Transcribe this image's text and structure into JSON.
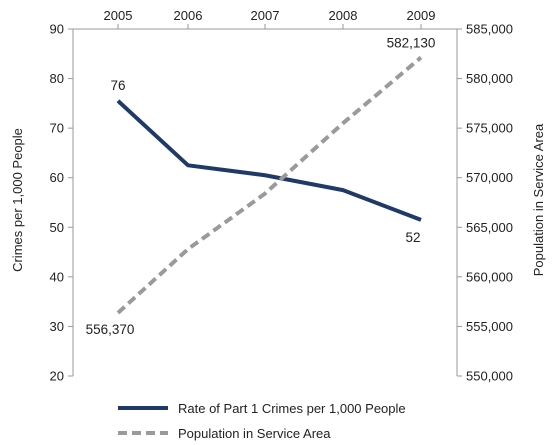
{
  "chart_data": {
    "type": "line",
    "x": [
      "2005",
      "2006",
      "2007",
      "2008",
      "2009"
    ],
    "y_left": {
      "label": "Crimes per 1,000 People",
      "lim": [
        20,
        90
      ],
      "ticks": [
        "20",
        "30",
        "40",
        "50",
        "60",
        "70",
        "80",
        "90"
      ]
    },
    "y_right": {
      "label": "Population in Service Area",
      "lim": [
        550000,
        585000
      ],
      "ticks": [
        "550,000",
        "555,000",
        "560,000",
        "565,000",
        "570,000",
        "575,000",
        "580,000",
        "585,000"
      ]
    },
    "x_axis_position": "top",
    "grid": false,
    "series": [
      {
        "name": "Rate of Part 1 Crimes per 1,000 People",
        "axis": "left",
        "style": "solid",
        "color": "#1f3a68",
        "values": [
          75.5,
          62.5,
          60.5,
          57.5,
          51.5
        ],
        "labels": {
          "start": "76",
          "end": "52"
        }
      },
      {
        "name": "Population in Service Area",
        "axis": "right",
        "style": "dashed",
        "color": "#9a9a9a",
        "values": [
          556370,
          562800,
          568400,
          575500,
          582130
        ],
        "labels": {
          "start": "556,370",
          "end": "582,130"
        }
      }
    ],
    "legend_position": "bottom"
  }
}
